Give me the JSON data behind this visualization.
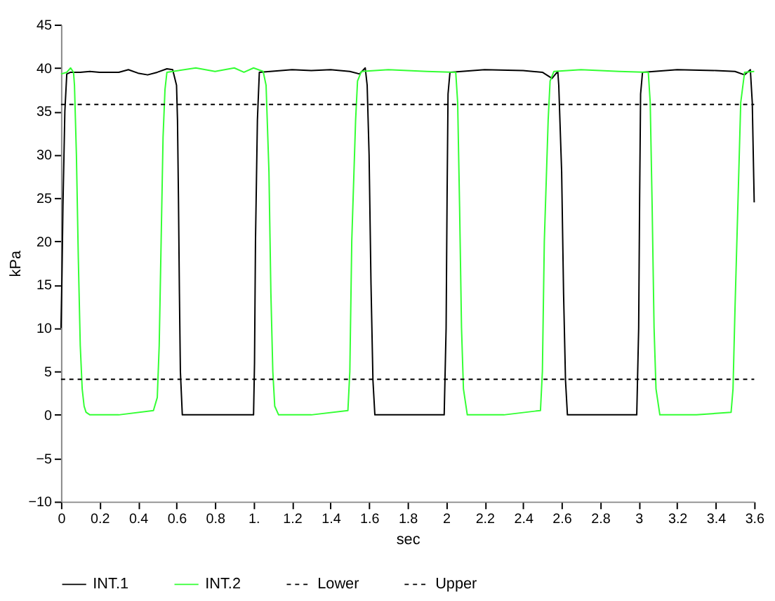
{
  "chart_data": {
    "type": "line",
    "xlabel": "sec",
    "ylabel": "kPa",
    "xlim": [
      0,
      3.6
    ],
    "ylim": [
      -10,
      45
    ],
    "xticks": [
      0,
      0.2,
      0.4,
      0.6,
      0.8,
      {
        "value": 1,
        "label": "1."
      },
      1.2,
      1.4,
      1.6,
      1.8,
      2,
      2.2,
      2.4,
      2.6,
      2.8,
      3,
      3.2,
      3.4,
      3.6
    ],
    "yticks": [
      -10,
      -5,
      0,
      5,
      10,
      15,
      20,
      25,
      30,
      35,
      40,
      45
    ],
    "grid": false,
    "legend": "bottom",
    "marker": "none",
    "series": [
      {
        "name": "INT.1",
        "color": "#000000",
        "line_style": "solid",
        "x": [
          0,
          0.005,
          0.01,
          0.02,
          0.03,
          0.05,
          0.1,
          0.15,
          0.2,
          0.3,
          0.35,
          0.4,
          0.45,
          0.5,
          0.55,
          0.58,
          0.6,
          0.605,
          0.61,
          0.615,
          0.62,
          0.63,
          0.8,
          1.0,
          1.005,
          1.01,
          1.02,
          1.03,
          1.2,
          1.3,
          1.4,
          1.5,
          1.55,
          1.58,
          1.59,
          1.6,
          1.61,
          1.62,
          1.63,
          1.8,
          1.99,
          2.0,
          2.005,
          2.01,
          2.02,
          2.2,
          2.4,
          2.5,
          2.55,
          2.58,
          2.585,
          2.6,
          2.61,
          2.62,
          2.63,
          2.8,
          2.99,
          3.0,
          3.005,
          3.01,
          3.02,
          3.2,
          3.4,
          3.5,
          3.55,
          3.58,
          3.59,
          3.6
        ],
        "values": [
          10,
          16,
          24,
          35,
          39.3,
          39.5,
          39.5,
          39.6,
          39.5,
          39.5,
          39.8,
          39.4,
          39.2,
          39.5,
          39.9,
          39.8,
          38,
          34,
          25,
          14,
          5,
          0,
          0,
          0,
          6,
          20,
          34,
          39.5,
          39.8,
          39.7,
          39.8,
          39.6,
          39.3,
          40,
          38,
          30,
          15,
          4,
          0,
          0,
          0,
          10,
          25,
          37,
          39.5,
          39.8,
          39.7,
          39.5,
          38.8,
          39.6,
          38,
          28,
          14,
          4,
          0,
          0,
          0,
          10,
          25,
          37,
          39.5,
          39.8,
          39.7,
          39.6,
          39.2,
          39.8,
          36,
          24.5
        ]
      },
      {
        "name": "INT.2",
        "color": "#33ff33",
        "line_style": "solid",
        "x": [
          0,
          0.03,
          0.05,
          0.065,
          0.07,
          0.08,
          0.09,
          0.1,
          0.11,
          0.12,
          0.13,
          0.15,
          0.3,
          0.48,
          0.5,
          0.51,
          0.52,
          0.53,
          0.54,
          0.55,
          0.58,
          0.7,
          0.8,
          0.9,
          0.95,
          1.0,
          1.05,
          1.065,
          1.08,
          1.09,
          1.1,
          1.11,
          1.13,
          1.3,
          1.49,
          1.5,
          1.51,
          1.53,
          1.54,
          1.56,
          1.7,
          1.9,
          2.05,
          2.06,
          2.07,
          2.08,
          2.09,
          2.11,
          2.3,
          2.49,
          2.5,
          2.51,
          2.53,
          2.54,
          2.56,
          2.7,
          2.9,
          3.05,
          3.06,
          3.07,
          3.08,
          3.09,
          3.11,
          3.3,
          3.48,
          3.49,
          3.5,
          3.52,
          3.53,
          3.55,
          3.6
        ],
        "values": [
          39.3,
          39.5,
          40,
          39.5,
          38,
          30,
          18,
          8,
          3,
          1,
          0.3,
          0,
          0,
          0.5,
          2,
          8,
          20,
          32,
          37.5,
          39.5,
          39.6,
          40,
          39.6,
          40,
          39.5,
          40,
          39.6,
          38,
          28,
          14,
          5,
          1,
          0,
          0,
          0.5,
          5,
          20,
          34,
          38.5,
          39.6,
          39.8,
          39.6,
          39.5,
          36,
          24,
          10,
          3,
          0,
          0,
          0.5,
          5,
          20,
          34,
          38.5,
          39.6,
          39.8,
          39.6,
          39.5,
          36,
          24,
          10,
          3,
          0,
          0,
          0.3,
          3,
          12,
          28,
          36,
          39.5,
          39.6
        ]
      },
      {
        "name": "Lower",
        "color": "#000000",
        "line_style": "dashed",
        "x": [
          0,
          3.6
        ],
        "values": [
          4.1,
          4.1
        ]
      },
      {
        "name": "Upper",
        "color": "#000000",
        "line_style": "dashed",
        "x": [
          0,
          3.6
        ],
        "values": [
          35.8,
          35.8
        ]
      }
    ]
  }
}
